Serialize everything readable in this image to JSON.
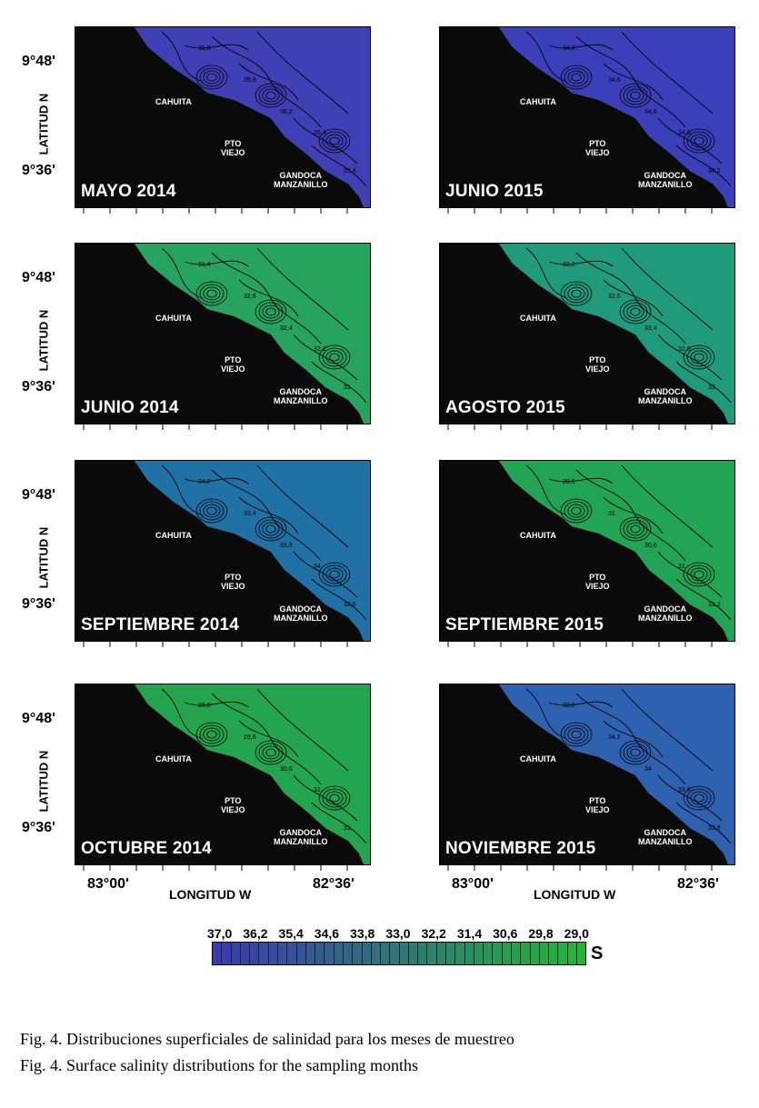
{
  "map": {
    "latitude_label": "LATITUD N",
    "longitude_label": "LONGITUD W",
    "lat_ticks": [
      "9°48'",
      "9°36'"
    ],
    "lon_ticks": [
      "83°00'",
      "82°36'"
    ],
    "places": {
      "cahuita": "CAHUITA",
      "pto_viejo": "PTO\nVIEJO",
      "gandoca": "GANDOCA\nMANZANILLO"
    }
  },
  "panels": [
    {
      "month": "MAYO 2014",
      "color": "#3f3fb6",
      "isolines": [
        "35,8",
        "35,8",
        "36,2",
        "35,4",
        "35,4"
      ]
    },
    {
      "month": "JUNIO 2015",
      "color": "#3b3fba",
      "isolines": [
        "34,2",
        "34,6",
        "34,6",
        "34,6",
        "34,2"
      ]
    },
    {
      "month": "JUNIO 2014",
      "color": "#25a35f",
      "isolines": [
        "31,4",
        "32,6",
        "32,4",
        "32,2",
        "31"
      ]
    },
    {
      "month": "AGOSTO 2015",
      "color": "#1f9a7c",
      "isolines": [
        "32,2",
        "32,6",
        "33,4",
        "32,6",
        "33"
      ]
    },
    {
      "month": "SEPTIEMBRE 2014",
      "color": "#1f71a6",
      "isolines": [
        "34,2",
        "33,4",
        "33,6",
        "34",
        "32,6"
      ]
    },
    {
      "month": "SEPTIEMBRE 2015",
      "color": "#22a455",
      "isolines": [
        "29,6",
        "31",
        "30,6",
        "31",
        "31,2"
      ]
    },
    {
      "month": "OCTUBRE 2014",
      "color": "#23a550",
      "isolines": [
        "29,8",
        "29,6",
        "30,6",
        "31",
        "31"
      ]
    },
    {
      "month": "NOVIEMBRE 2015",
      "color": "#2e62b0",
      "isolines": [
        "33,6",
        "34,2",
        "34",
        "33,6",
        "33,8"
      ]
    }
  ],
  "colorbar": {
    "unit": "S",
    "labels": [
      "37,0",
      "36,2",
      "35,4",
      "34,6",
      "33,8",
      "33,0",
      "32,2",
      "31,4",
      "30,6",
      "29,8",
      "29,0"
    ],
    "low_color": "#3a3ab3",
    "high_color": "#22b53b"
  },
  "caption": {
    "spanish": "Fig. 4. Distribuciones superficiales de salinidad para los meses de muestreo",
    "english": "Fig. 4. Surface salinity distributions for the sampling months"
  }
}
